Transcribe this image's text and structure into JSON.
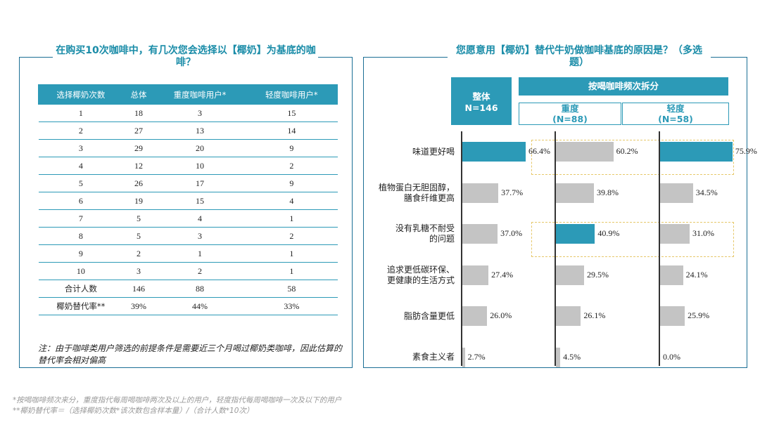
{
  "left": {
    "title": "在购买10次咖啡中，有几次您会选择以【椰奶】为基底的咖啡？",
    "table": {
      "headers": [
        "选择椰奶次数",
        "总体",
        "重度咖啡用户*",
        "轻度咖啡用户*"
      ],
      "rows": [
        [
          "1",
          "18",
          "3",
          "15"
        ],
        [
          "2",
          "27",
          "13",
          "14"
        ],
        [
          "3",
          "29",
          "20",
          "9"
        ],
        [
          "4",
          "12",
          "10",
          "2"
        ],
        [
          "5",
          "26",
          "17",
          "9"
        ],
        [
          "6",
          "19",
          "15",
          "4"
        ],
        [
          "7",
          "5",
          "4",
          "1"
        ],
        [
          "8",
          "5",
          "3",
          "2"
        ],
        [
          "9",
          "2",
          "1",
          "1"
        ],
        [
          "10",
          "3",
          "2",
          "1"
        ],
        [
          "合计人数",
          "146",
          "88",
          "58"
        ],
        [
          "椰奶替代率**",
          "39%",
          "44%",
          "33%"
        ]
      ]
    },
    "note": "注：由于咖啡类用户筛选的前提条件是需要近三个月喝过椰奶类咖啡，因此估算的替代率会相对偏高"
  },
  "right": {
    "title": "您愿意用【椰奶】替代牛奶做咖啡基底的原因是？（多选题）",
    "overall_label": "整体",
    "overall_n": "N=146",
    "split_label": "按喝咖啡频次拆分",
    "heavy_label": "重度",
    "heavy_n": "(N=88)",
    "light_label": "轻度",
    "light_n": "(N=58)"
  },
  "chart_data": {
    "type": "bar",
    "orientation": "horizontal",
    "title": "您愿意用【椰奶】替代牛奶做咖啡基底的原因是？（多选题）",
    "categories": [
      [
        "味道更好喝"
      ],
      [
        "植物蛋白无胆固醇，",
        "膳食纤维更高"
      ],
      [
        "没有乳糖不耐受",
        "的问题"
      ],
      [
        "追求更低碳环保、",
        "更健康的生活方式"
      ],
      [
        "脂肪含量更低"
      ],
      [
        "素食主义者"
      ]
    ],
    "series": [
      {
        "name": "整体 N=146",
        "values": [
          66.4,
          37.7,
          37.0,
          27.4,
          26.0,
          2.7
        ],
        "highlight": [
          0
        ]
      },
      {
        "name": "重度 (N=88)",
        "values": [
          60.2,
          39.8,
          40.9,
          29.5,
          26.1,
          4.5
        ],
        "highlight": [
          2
        ]
      },
      {
        "name": "轻度 (N=58)",
        "values": [
          75.9,
          34.5,
          31.0,
          24.1,
          25.9,
          0.0
        ],
        "highlight": [
          0
        ]
      }
    ],
    "value_format": "%.1f%",
    "colors": {
      "highlight": "#2c9ab7",
      "normal": "#c4c4c4"
    },
    "dashed_highlight_rows": [
      0,
      2
    ]
  },
  "footnotes": [
    "*按喝咖啡频次来分，重度指代每周喝咖啡两次及以上的用户，轻度指代每周喝咖啡一次及以下的用户",
    "**椰奶替代率＝（选择椰奶次数*该次数包含样本量）/（合计人数*10次）"
  ]
}
